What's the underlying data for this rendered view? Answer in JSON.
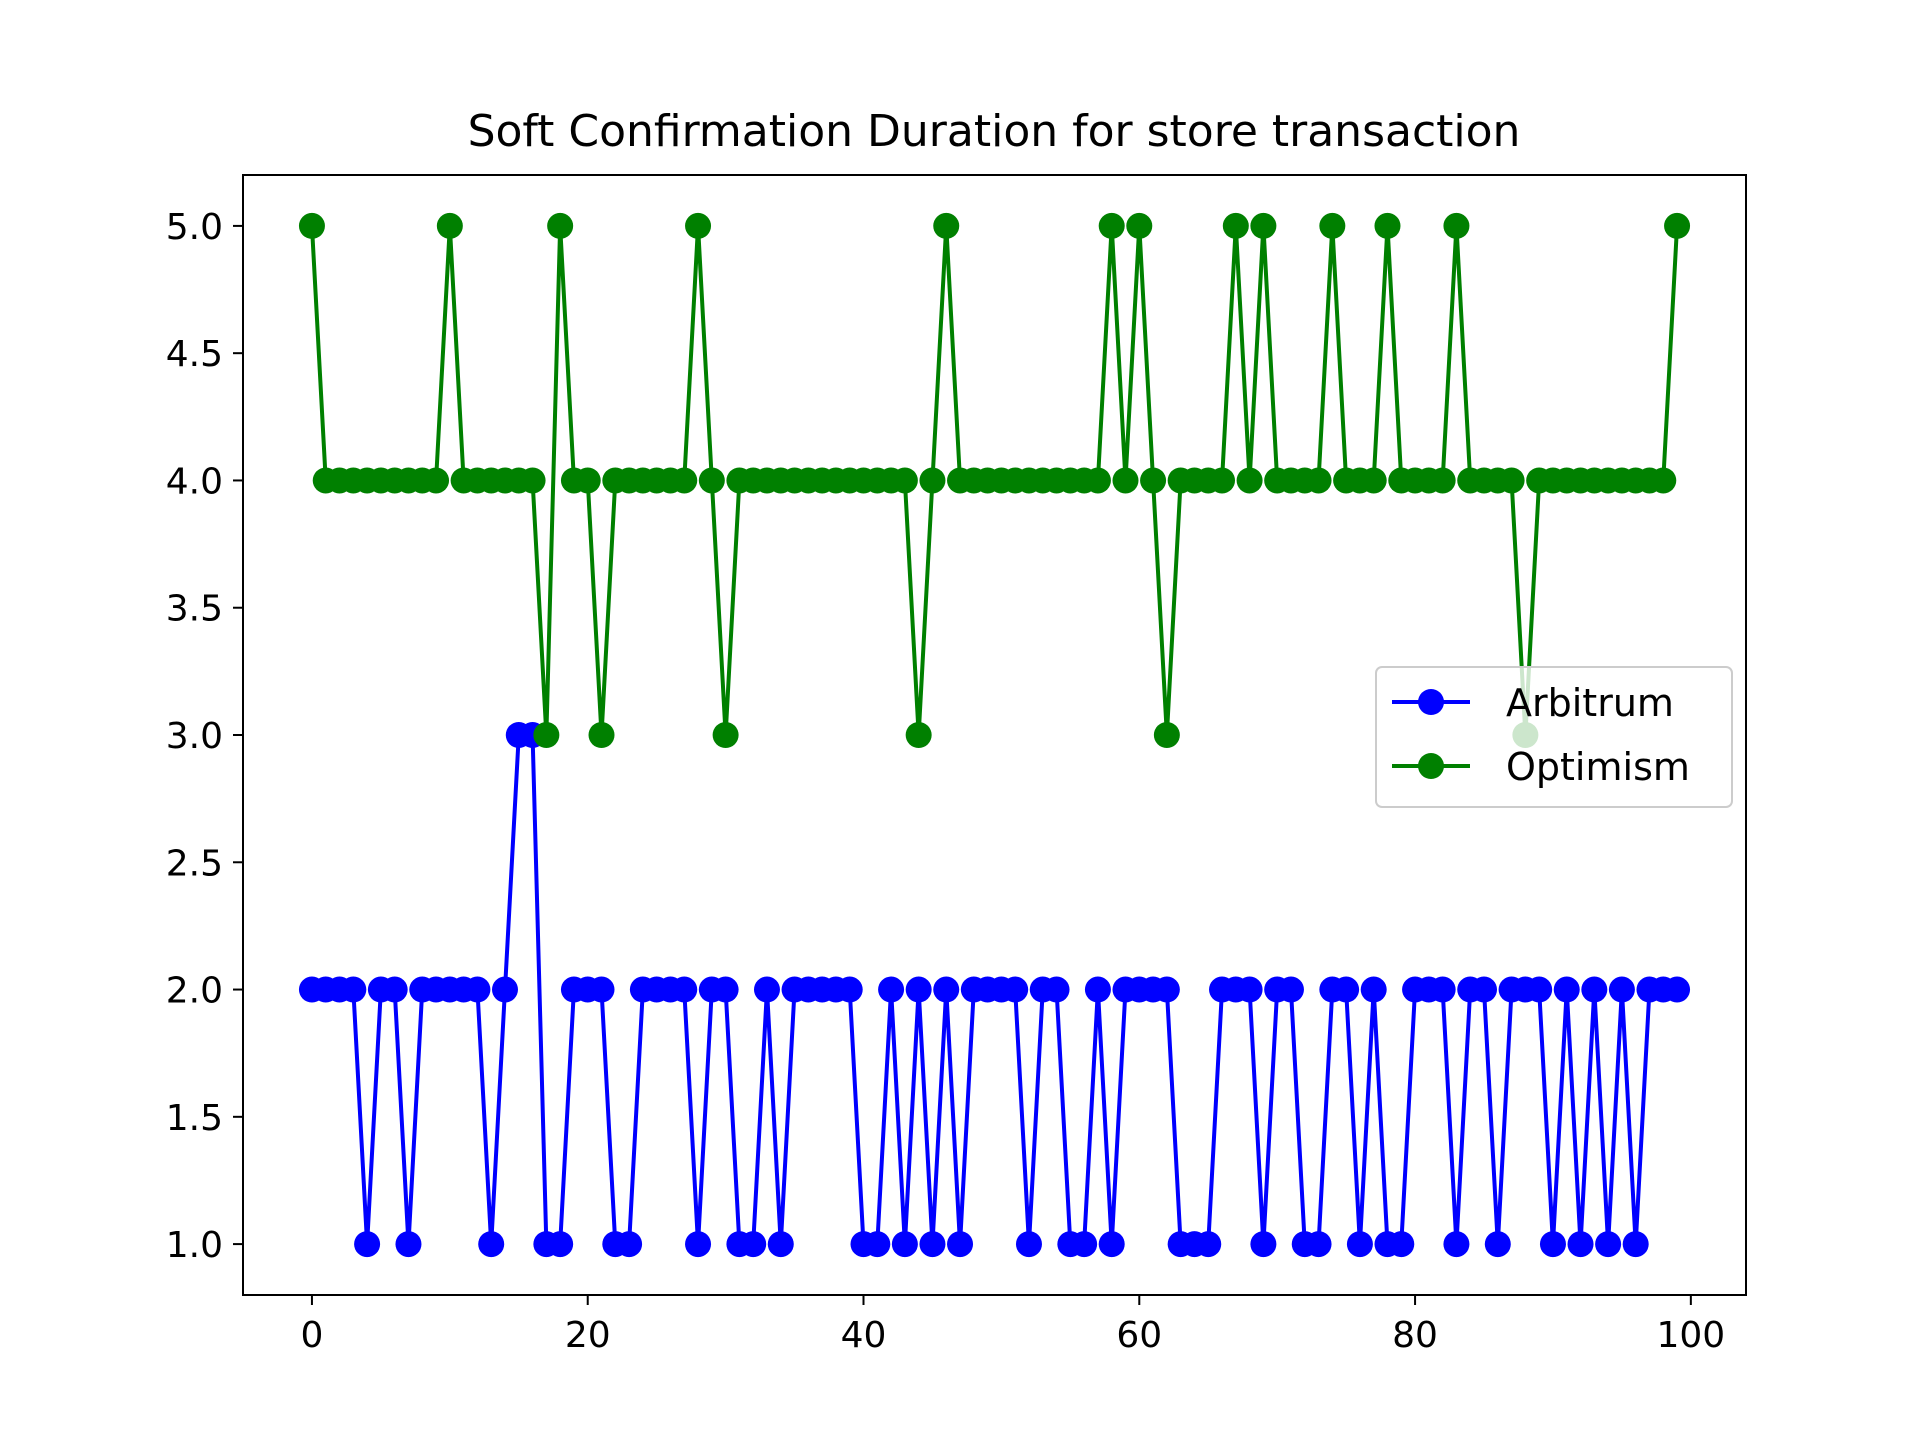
{
  "chart_data": {
    "type": "line",
    "title": "Soft Confirmation Duration for store transaction",
    "xlabel": "",
    "ylabel": "",
    "xlim": [
      -5,
      104
    ],
    "ylim": [
      0.8,
      5.2
    ],
    "xticks": [
      0,
      20,
      40,
      60,
      80,
      100
    ],
    "xtick_labels": [
      "0",
      "20",
      "40",
      "60",
      "80",
      "100"
    ],
    "yticks": [
      1.0,
      1.5,
      2.0,
      2.5,
      3.0,
      3.5,
      4.0,
      4.5,
      5.0
    ],
    "ytick_labels": [
      "1.0",
      "1.5",
      "2.0",
      "2.5",
      "3.0",
      "3.5",
      "4.0",
      "4.5",
      "5.0"
    ],
    "grid": false,
    "legend_position": "center-right",
    "x": [
      0,
      1,
      2,
      3,
      4,
      5,
      6,
      7,
      8,
      9,
      10,
      11,
      12,
      13,
      14,
      15,
      16,
      17,
      18,
      19,
      20,
      21,
      22,
      23,
      24,
      25,
      26,
      27,
      28,
      29,
      30,
      31,
      32,
      33,
      34,
      35,
      36,
      37,
      38,
      39,
      40,
      41,
      42,
      43,
      44,
      45,
      46,
      47,
      48,
      49,
      50,
      51,
      52,
      53,
      54,
      55,
      56,
      57,
      58,
      59,
      60,
      61,
      62,
      63,
      64,
      65,
      66,
      67,
      68,
      69,
      70,
      71,
      72,
      73,
      74,
      75,
      76,
      77,
      78,
      79,
      80,
      81,
      82,
      83,
      84,
      85,
      86,
      87,
      88,
      89,
      90,
      91,
      92,
      93,
      94,
      95,
      96,
      97,
      98,
      99
    ],
    "series": [
      {
        "name": "Arbitrum",
        "color": "#0000ff",
        "values": [
          2,
          2,
          2,
          2,
          1,
          2,
          2,
          1,
          2,
          2,
          2,
          2,
          2,
          1,
          2,
          3,
          3,
          1,
          1,
          2,
          2,
          2,
          1,
          1,
          2,
          2,
          2,
          2,
          1,
          2,
          2,
          1,
          1,
          2,
          1,
          2,
          2,
          2,
          2,
          2,
          1,
          1,
          2,
          1,
          2,
          1,
          2,
          1,
          2,
          2,
          2,
          2,
          1,
          2,
          2,
          1,
          1,
          2,
          1,
          2,
          2,
          2,
          2,
          1,
          1,
          1,
          2,
          2,
          2,
          1,
          2,
          2,
          1,
          1,
          2,
          2,
          1,
          2,
          1,
          1,
          2,
          2,
          2,
          1,
          2,
          2,
          1,
          2,
          2,
          2,
          1,
          2,
          1,
          2,
          1,
          2,
          1,
          2,
          2,
          2
        ]
      },
      {
        "name": "Optimism",
        "color": "#008000",
        "values": [
          5,
          4,
          4,
          4,
          4,
          4,
          4,
          4,
          4,
          4,
          5,
          4,
          4,
          4,
          4,
          4,
          4,
          3,
          5,
          4,
          4,
          3,
          4,
          4,
          4,
          4,
          4,
          4,
          5,
          4,
          3,
          4,
          4,
          4,
          4,
          4,
          4,
          4,
          4,
          4,
          4,
          4,
          4,
          4,
          3,
          4,
          5,
          4,
          4,
          4,
          4,
          4,
          4,
          4,
          4,
          4,
          4,
          4,
          5,
          4,
          5,
          4,
          3,
          4,
          4,
          4,
          4,
          5,
          4,
          5,
          4,
          4,
          4,
          4,
          5,
          4,
          4,
          4,
          5,
          4,
          4,
          4,
          4,
          5,
          4,
          4,
          4,
          4,
          3,
          4,
          4,
          4,
          4,
          4,
          4,
          4,
          4,
          4,
          4,
          5
        ]
      }
    ]
  }
}
